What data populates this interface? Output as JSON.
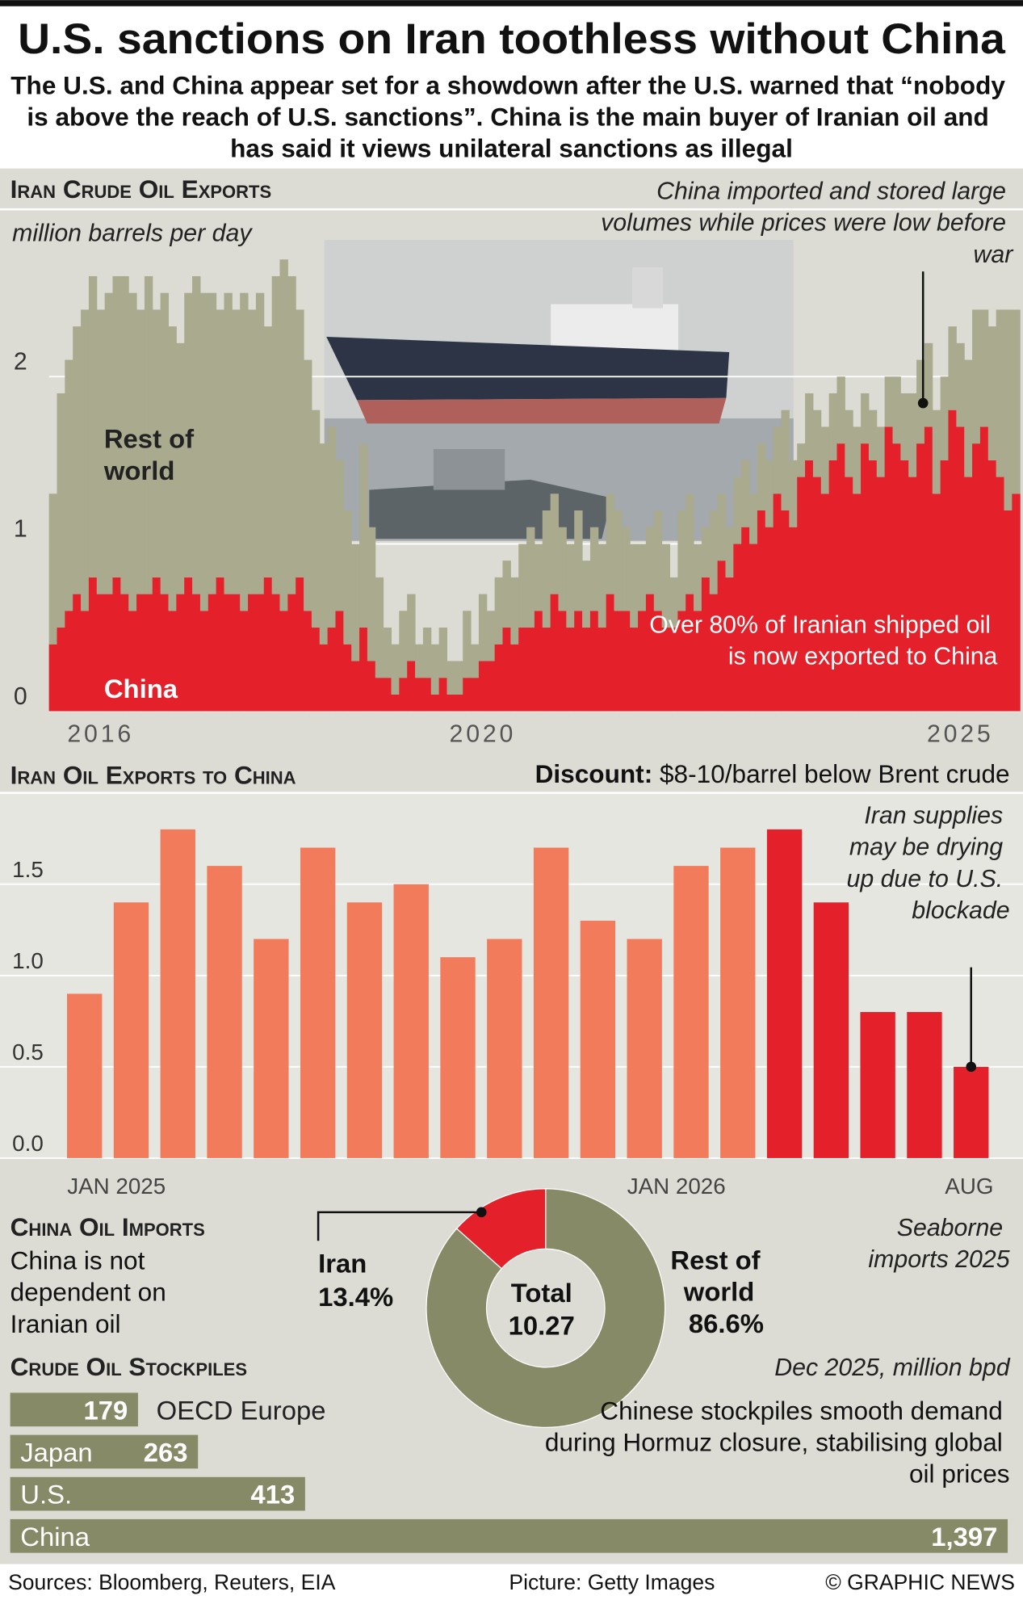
{
  "header": {
    "title": "U.S. sanctions on Iran toothless without China",
    "subtitle": "The U.S. and China appear set for a showdown after the U.S. warned that “nobody is above the reach of U.S. sanctions”. China is the main buyer of Iranian oil and has said it views unilateral sanctions as illegal"
  },
  "chart_data": [
    {
      "type": "bar",
      "stacked": true,
      "title": "Iran Crude Oil Exports",
      "y_label": "million barrels per day",
      "categories": [
        null,
        null,
        null,
        null,
        null,
        null,
        "2016",
        null,
        null,
        null,
        null,
        null,
        null,
        null,
        null,
        null,
        null,
        null,
        null,
        null,
        null,
        null,
        null,
        null,
        null,
        null,
        null,
        null,
        null,
        null,
        null,
        null,
        null,
        null,
        null,
        null,
        null,
        null,
        null,
        null,
        null,
        null,
        null,
        null,
        null,
        null,
        null,
        null,
        null,
        null,
        null,
        null,
        null,
        null,
        "2020",
        null,
        null,
        null,
        null,
        null,
        null,
        null,
        null,
        null,
        null,
        null,
        null,
        null,
        null,
        null,
        null,
        null,
        null,
        null,
        null,
        null,
        null,
        null,
        null,
        null,
        null,
        null,
        null,
        null,
        null,
        null,
        null,
        null,
        null,
        null,
        null,
        null,
        null,
        null,
        null,
        null,
        null,
        null,
        null,
        null,
        null,
        null,
        null,
        null,
        null,
        null,
        null,
        null,
        null,
        null,
        null,
        null,
        null,
        null,
        "2025",
        null,
        null,
        null,
        null,
        null,
        null,
        null
      ],
      "series": [
        {
          "name": "China",
          "color": "#e4202a",
          "values": [
            0.4,
            0.5,
            0.6,
            0.7,
            0.6,
            0.8,
            0.7,
            0.7,
            0.8,
            0.7,
            0.6,
            0.7,
            0.7,
            0.8,
            0.7,
            0.6,
            0.7,
            0.8,
            0.7,
            0.6,
            0.7,
            0.8,
            0.7,
            0.7,
            0.6,
            0.7,
            0.7,
            0.8,
            0.7,
            0.6,
            0.7,
            0.8,
            0.6,
            0.5,
            0.4,
            0.5,
            0.6,
            0.4,
            0.3,
            0.5,
            0.3,
            0.2,
            0.2,
            0.1,
            0.2,
            0.3,
            0.2,
            0.2,
            0.1,
            0.2,
            0.1,
            0.1,
            0.2,
            0.2,
            0.3,
            0.3,
            0.4,
            0.5,
            0.4,
            0.5,
            0.5,
            0.6,
            0.5,
            0.7,
            0.6,
            0.5,
            0.6,
            0.5,
            0.6,
            0.5,
            0.7,
            0.6,
            0.6,
            0.5,
            0.6,
            0.7,
            0.6,
            0.5,
            0.5,
            0.6,
            0.7,
            0.6,
            0.8,
            0.7,
            0.9,
            0.8,
            1.0,
            1.1,
            1.0,
            1.2,
            1.1,
            1.3,
            1.2,
            1.1,
            1.4,
            1.5,
            1.4,
            1.3,
            1.5,
            1.6,
            1.4,
            1.3,
            1.6,
            1.5,
            1.4,
            1.7,
            1.6,
            1.5,
            1.4,
            1.6,
            1.7,
            1.3,
            1.5,
            1.8,
            1.7,
            1.4,
            1.6,
            1.7,
            1.5,
            1.4,
            1.2,
            1.3
          ]
        },
        {
          "name": "Rest of world",
          "color": "#a9aa8e",
          "values": [
            0.9,
            1.4,
            1.5,
            1.6,
            1.8,
            1.8,
            1.7,
            1.8,
            1.8,
            1.9,
            1.9,
            1.7,
            1.9,
            1.6,
            1.8,
            1.7,
            1.5,
            1.7,
            1.9,
            1.9,
            1.8,
            1.6,
            1.8,
            1.7,
            1.9,
            1.7,
            1.8,
            1.5,
            1.9,
            2.1,
            1.9,
            1.6,
            1.5,
            1.3,
            1.2,
            1.2,
            0.9,
            0.8,
            0.7,
            1.1,
            0.8,
            0.6,
            0.3,
            0.3,
            0.4,
            0.4,
            0.2,
            0.3,
            0.3,
            0.3,
            0.2,
            0.2,
            0.4,
            0.2,
            0.4,
            0.3,
            0.4,
            0.4,
            0.4,
            0.5,
            0.6,
            0.4,
            0.7,
            0.6,
            0.5,
            0.5,
            0.6,
            0.4,
            0.5,
            0.5,
            0.6,
            0.6,
            0.5,
            0.5,
            0.4,
            0.4,
            0.6,
            0.5,
            0.3,
            0.6,
            0.6,
            0.4,
            0.3,
            0.5,
            0.4,
            0.3,
            0.4,
            0.4,
            0.3,
            0.4,
            0.4,
            0.4,
            0.6,
            0.4,
            0.2,
            0.4,
            0.4,
            0.4,
            0.4,
            0.4,
            0.4,
            0.4,
            0.3,
            0.3,
            0.3,
            0.3,
            0.4,
            0.4,
            0.5,
            0.5,
            0.5,
            0.5,
            0.5,
            0.5,
            0.5,
            0.7,
            0.8,
            0.7,
            0.8,
            1.0,
            1.2,
            1.1
          ]
        }
      ],
      "ylim": [
        0,
        3
      ],
      "yticks": [
        0,
        1,
        2
      ],
      "grid": true,
      "annotations": [
        "China imported and stored large volumes while prices were low before war",
        "Over 80% of Iranian shipped oil is now exported to China"
      ]
    },
    {
      "type": "bar",
      "title": "Iran Oil Exports to China",
      "note_label": "Discount:",
      "note": "$8-10/barrel below Brent crude",
      "categories": [
        "JAN 2025",
        null,
        null,
        null,
        null,
        null,
        null,
        null,
        null,
        null,
        null,
        null,
        "JAN 2026",
        null,
        null,
        null,
        null,
        null,
        null,
        "AUG"
      ],
      "values": [
        0.9,
        1.4,
        1.8,
        1.6,
        1.2,
        1.7,
        1.4,
        1.5,
        1.1,
        1.2,
        1.7,
        1.3,
        1.2,
        1.6,
        1.7,
        1.8,
        1.4,
        0.8,
        0.8,
        0.5
      ],
      "colors": [
        "#f27b5b",
        "#f27b5b",
        "#f27b5b",
        "#f27b5b",
        "#f27b5b",
        "#f27b5b",
        "#f27b5b",
        "#f27b5b",
        "#f27b5b",
        "#f27b5b",
        "#f27b5b",
        "#f27b5b",
        "#f27b5b",
        "#f27b5b",
        "#f27b5b",
        "#e4202a",
        "#e4202a",
        "#e4202a",
        "#e4202a",
        "#e4202a"
      ],
      "ylim": [
        0,
        2
      ],
      "yticks": [
        {
          "value": 0,
          "label": "0.0"
        },
        0.5,
        {
          "value": 1,
          "label": "1.0"
        },
        1.5
      ],
      "grid": true,
      "annotations": [
        "Iran supplies may be drying up due to U.S. blockade"
      ]
    },
    {
      "type": "pie",
      "donut": true,
      "title": "China Oil Imports",
      "subtitle": "China is not dependent on Iranian oil",
      "note": "Seaborne imports 2025",
      "categories": [
        "Iran",
        "Rest of world"
      ],
      "values": [
        13.4,
        86.6
      ],
      "value_labels": [
        "13.4%",
        "86.6%"
      ],
      "colors": [
        "#e4202a",
        "#878a66"
      ],
      "total_label": "Total",
      "total": 10.27
    },
    {
      "type": "hbar",
      "title": "Crude Oil Stockpiles",
      "unit": "Dec 2025, million bpd",
      "categories": [
        "OECD Europe",
        "Japan",
        "U.S.",
        "China"
      ],
      "values": [
        179,
        263,
        413,
        1397
      ],
      "value_labels": [
        "179",
        "263",
        "413",
        "1,397"
      ],
      "color": "#878a66",
      "annotations": [
        "Chinese stockpiles smooth demand during Hormuz closure, stabilising global oil prices"
      ]
    }
  ],
  "footer": {
    "sources": "Sources: Bloomberg, Reuters, EIA",
    "picture": "Picture: Getty Images",
    "credit": "© GRAPHIC NEWS"
  }
}
